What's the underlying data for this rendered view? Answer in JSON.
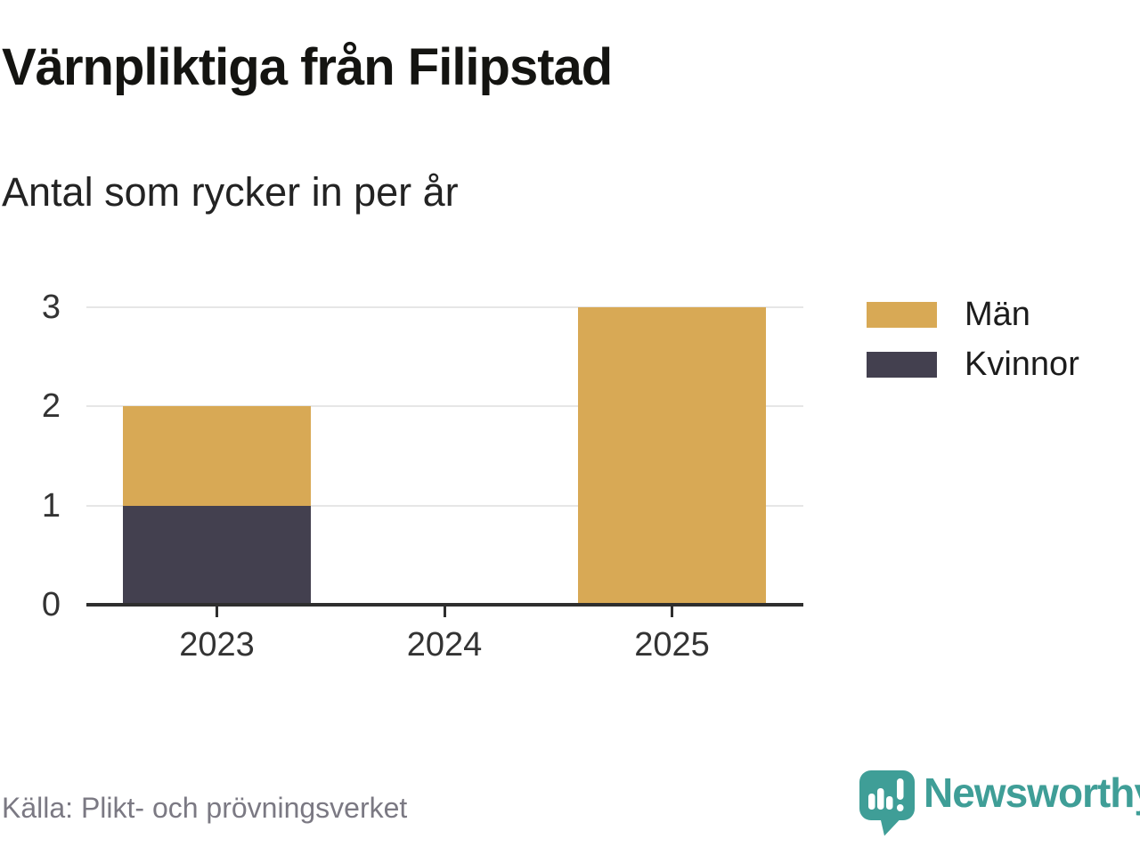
{
  "header": {
    "title": "Värnpliktiga från Filipstad",
    "subtitle": "Antal som rycker in per år"
  },
  "footer": {
    "source": "Källa: Plikt- och prövningsverket",
    "brand_name": "Newsworthy"
  },
  "legend": [
    {
      "label": "Män",
      "color": "#d8a955"
    },
    {
      "label": "Kvinnor",
      "color": "#43404f"
    }
  ],
  "colors": {
    "men": "#d8a955",
    "women": "#43404f",
    "axis": "#2e2e2e",
    "grid": "#e6e6e6",
    "tick_text": "#333333",
    "brand_teal": "#3f9e97",
    "source_text": "#7b7983"
  },
  "chart_data": {
    "type": "bar",
    "stacked": true,
    "categories": [
      "2023",
      "2024",
      "2025"
    ],
    "series": [
      {
        "name": "Män",
        "values": [
          1,
          0,
          3
        ],
        "color": "#d8a955"
      },
      {
        "name": "Kvinnor",
        "values": [
          1,
          0,
          0
        ],
        "color": "#43404f"
      }
    ],
    "stack_order_bottom_to_top": [
      "Kvinnor",
      "Män"
    ],
    "title": "Värnpliktiga från Filipstad",
    "subtitle": "Antal som rycker in per år",
    "xlabel": "",
    "ylabel": "",
    "ylim": [
      0,
      3
    ],
    "yticks": [
      0,
      1,
      2,
      3
    ],
    "grid": true,
    "legend_position": "right",
    "totals_by_category": {
      "2023": 2,
      "2024": 0,
      "2025": 3
    }
  }
}
